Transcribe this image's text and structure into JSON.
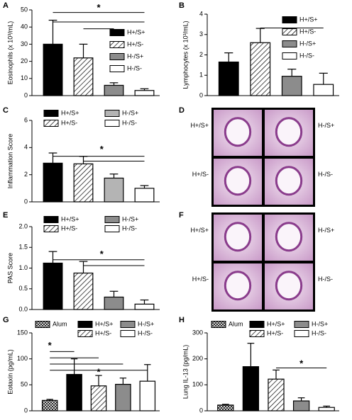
{
  "chart_data": [
    {
      "type": "bar",
      "panel": "A",
      "ylabel": "Eosinophils (x 10³/mL)",
      "categories": [
        "H+/S+",
        "H+/S-",
        "H-/S+",
        "H-/S-"
      ],
      "values": [
        30,
        22,
        6,
        3
      ],
      "errors": [
        14,
        8,
        1.5,
        1
      ],
      "fills": [
        "#000000",
        "hatch",
        "#8c8c8c",
        "#ffffff"
      ],
      "ylim": [
        0,
        50
      ],
      "yticks": [
        0,
        10,
        20,
        30,
        40,
        50
      ],
      "annotations": [
        "*"
      ]
    },
    {
      "type": "bar",
      "panel": "B",
      "ylabel": "Lymphocytes (x 10³/mL)",
      "categories": [
        "H+/S+",
        "H+/S-",
        "H-/S+",
        "H-/S-"
      ],
      "values": [
        1.65,
        2.6,
        0.95,
        0.55
      ],
      "errors": [
        0.45,
        0.7,
        0.35,
        0.55
      ],
      "fills": [
        "#000000",
        "hatch",
        "#8c8c8c",
        "#ffffff"
      ],
      "ylim": [
        0,
        4
      ],
      "yticks": [
        0,
        1,
        2,
        3,
        4
      ],
      "annotations": [
        "*"
      ]
    },
    {
      "type": "bar",
      "panel": "C",
      "ylabel": "Inflammation Score",
      "categories": [
        "H+/S+",
        "H+/S-",
        "H-/S+",
        "H-/S-"
      ],
      "values": [
        2.85,
        2.8,
        1.75,
        1.0
      ],
      "errors": [
        0.75,
        0.55,
        0.3,
        0.2
      ],
      "fills": [
        "#000000",
        "hatch",
        "#b4b4b4",
        "#ffffff"
      ],
      "ylim": [
        0,
        6
      ],
      "yticks": [
        0,
        2,
        4,
        6
      ],
      "annotations": [
        "*"
      ]
    },
    {
      "type": "bar",
      "panel": "E",
      "ylabel": "PAS Score",
      "categories": [
        "H+/S+",
        "H+/S-",
        "H-/S+",
        "H-/S-"
      ],
      "values": [
        1.12,
        0.88,
        0.3,
        0.13
      ],
      "errors": [
        0.28,
        0.28,
        0.14,
        0.1
      ],
      "fills": [
        "#000000",
        "hatch",
        "#8c8c8c",
        "#ffffff"
      ],
      "ylim": [
        0,
        2
      ],
      "yticks": [
        {
          "value": 0,
          "label": "0.0"
        },
        0.5,
        {
          "value": 1,
          "label": "1.0"
        },
        1.5,
        {
          "value": 2,
          "label": "2.0"
        }
      ],
      "annotations": [
        "*"
      ]
    },
    {
      "type": "bar",
      "panel": "G",
      "ylabel": "Eotaxin (pg/mL)",
      "categories": [
        "Alum",
        "H+/S+",
        "H+/S-",
        "H-/S+",
        "H-/S-"
      ],
      "values": [
        20,
        70,
        48,
        51,
        57
      ],
      "errors": [
        2,
        30,
        20,
        12,
        32
      ],
      "fills": [
        "cross",
        "#000000",
        "hatch",
        "#8c8c8c",
        "#ffffff"
      ],
      "ylim": [
        0,
        150
      ],
      "yticks": [
        0,
        50,
        100,
        150
      ],
      "annotations": [
        "*",
        "*"
      ]
    },
    {
      "type": "bar",
      "panel": "H",
      "ylabel": "Lung IL-13 (pg/mL)",
      "categories": [
        "Alum",
        "H+/S+",
        "H+/S-",
        "H-/S+",
        "H-/S-"
      ],
      "values": [
        22,
        170,
        122,
        38,
        13
      ],
      "errors": [
        3,
        90,
        35,
        12,
        5
      ],
      "fills": [
        "cross",
        "#000000",
        "hatch",
        "#8c8c8c",
        "#ffffff"
      ],
      "ylim": [
        0,
        300
      ],
      "yticks": [
        0,
        100,
        200,
        300
      ],
      "annotations": [
        "*"
      ]
    }
  ],
  "micrographs": [
    {
      "panel": "D",
      "labels": [
        "H+/S+",
        "H-/S+",
        "H+/S-",
        "H-/S-"
      ]
    },
    {
      "panel": "F",
      "labels": [
        "H+/S+",
        "H-/S+",
        "H+/S-",
        "H-/S-"
      ]
    }
  ]
}
